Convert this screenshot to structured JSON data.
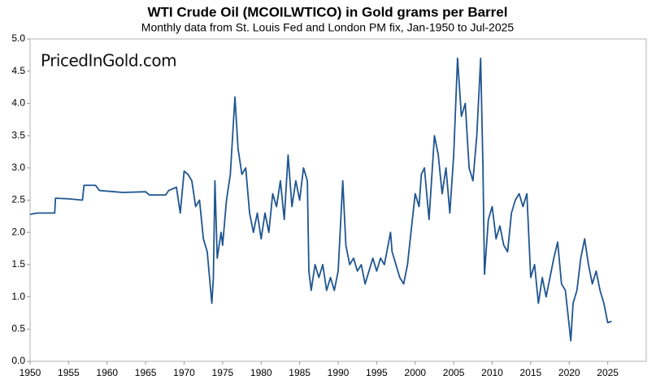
{
  "chart_data": {
    "type": "line",
    "title": "WTI Crude Oil (MCOILWTICO) in Gold grams per Barrel",
    "subtitle": "Monthly data from St. Louis Fed and London PM fix, Jan-1950 to Jul-2025",
    "watermark": "PricedInGold.com",
    "xlim": [
      1950,
      2030
    ],
    "ylim": [
      0,
      5
    ],
    "xticks": [
      1950,
      1955,
      1960,
      1965,
      1970,
      1975,
      1980,
      1985,
      1990,
      1995,
      2000,
      2005,
      2010,
      2015,
      2020,
      2025
    ],
    "yticks": [
      {
        "value": 0,
        "label": "0.0"
      },
      0.5,
      {
        "value": 1,
        "label": "1.0"
      },
      1.5,
      {
        "value": 2,
        "label": "2.0"
      },
      2.5,
      {
        "value": 3,
        "label": "3.0"
      },
      3.5,
      {
        "value": 4,
        "label": "4.0"
      },
      4.5,
      {
        "value": 5,
        "label": "5.0"
      }
    ],
    "grid": false,
    "series": [
      {
        "color": "#1f5591",
        "x": [
          1950,
          1950.9,
          1953.2,
          1953.3,
          1955,
          1956.8,
          1957,
          1958.5,
          1959,
          1961,
          1962,
          1965,
          1965.5,
          1967.6,
          1968,
          1969,
          1969.5,
          1970,
          1970.5,
          1971,
          1971.5,
          1972,
          1972.5,
          1973,
          1973.6,
          1973.8,
          1974,
          1974.3,
          1974.8,
          1975,
          1975.5,
          1976,
          1976.6,
          1977,
          1977.5,
          1978,
          1978.5,
          1979,
          1979.5,
          1980,
          1980.5,
          1981,
          1981.5,
          1982,
          1982.5,
          1983,
          1983.5,
          1984,
          1984.5,
          1985,
          1985.5,
          1986,
          1986.2,
          1986.5,
          1987,
          1987.5,
          1988,
          1988.5,
          1989,
          1989.5,
          1990,
          1990.6,
          1991,
          1991.5,
          1992,
          1992.5,
          1993,
          1993.5,
          1994,
          1994.5,
          1995,
          1995.5,
          1996,
          1996.8,
          1997,
          1998,
          1998.5,
          1999,
          2000,
          2000.5,
          2000.8,
          2001.2,
          2001.8,
          2002.5,
          2003,
          2003.5,
          2004,
          2004.5,
          2005,
          2005.5,
          2006,
          2006.5,
          2007,
          2007.5,
          2008,
          2008.5,
          2008.8,
          2009,
          2009.5,
          2010,
          2010.5,
          2011,
          2011.5,
          2012,
          2012.5,
          2013,
          2013.5,
          2014,
          2014.5,
          2015,
          2015.5,
          2016,
          2016.5,
          2017,
          2017.5,
          2018,
          2018.5,
          2019,
          2019.5,
          2020,
          2020.2,
          2020.5,
          2021,
          2021.5,
          2022,
          2022.5,
          2023,
          2023.5,
          2024,
          2024.5,
          2025,
          2025.5
        ],
        "values": [
          2.28,
          2.3,
          2.3,
          2.53,
          2.52,
          2.5,
          2.73,
          2.73,
          2.65,
          2.63,
          2.62,
          2.63,
          2.58,
          2.58,
          2.65,
          2.7,
          2.3,
          2.95,
          2.9,
          2.8,
          2.4,
          2.5,
          1.9,
          1.7,
          0.9,
          1.3,
          2.8,
          1.6,
          2.0,
          1.8,
          2.5,
          2.9,
          4.1,
          3.3,
          2.9,
          3.0,
          2.3,
          2.0,
          2.3,
          1.9,
          2.3,
          2.0,
          2.6,
          2.4,
          2.8,
          2.2,
          3.2,
          2.4,
          2.8,
          2.5,
          3.0,
          2.8,
          1.4,
          1.1,
          1.5,
          1.3,
          1.5,
          1.1,
          1.3,
          1.1,
          1.4,
          2.8,
          1.8,
          1.5,
          1.6,
          1.4,
          1.5,
          1.2,
          1.4,
          1.6,
          1.4,
          1.6,
          1.5,
          2.0,
          1.7,
          1.3,
          1.2,
          1.5,
          2.6,
          2.4,
          2.9,
          3.0,
          2.2,
          3.5,
          3.2,
          2.6,
          3.0,
          2.3,
          3.2,
          4.7,
          3.8,
          4.0,
          3.0,
          2.8,
          3.5,
          4.7,
          3.0,
          1.35,
          2.2,
          2.4,
          1.9,
          2.1,
          1.8,
          1.7,
          2.3,
          2.5,
          2.6,
          2.4,
          2.6,
          1.3,
          1.5,
          0.9,
          1.3,
          1.0,
          1.3,
          1.6,
          1.85,
          1.2,
          1.1,
          0.55,
          0.32,
          0.9,
          1.1,
          1.6,
          1.9,
          1.5,
          1.2,
          1.4,
          1.1,
          0.9,
          0.6,
          0.62
        ]
      }
    ]
  }
}
